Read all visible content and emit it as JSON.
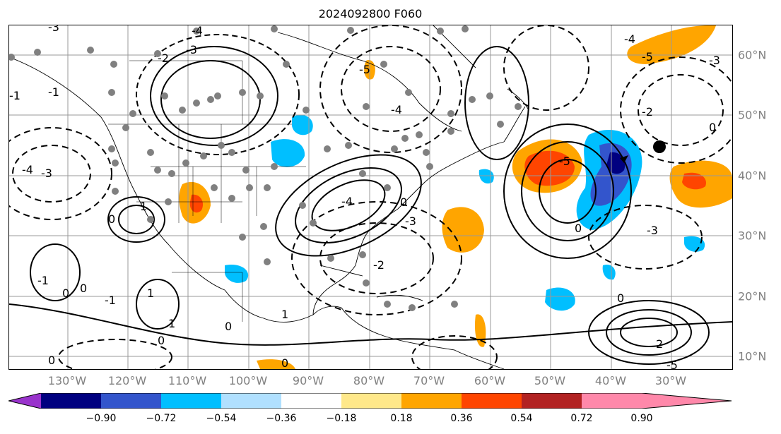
{
  "title": "2024092800 F060",
  "map": {
    "lon_labels": [
      "130°W",
      "120°W",
      "110°W",
      "100°W",
      "90°W",
      "80°W",
      "70°W",
      "60°W",
      "50°W",
      "40°W",
      "30°W"
    ],
    "lat_labels": [
      "60°N",
      "50°N",
      "40°N",
      "30°N",
      "20°N",
      "10°N"
    ],
    "contour_labels": [
      "-3",
      "-4",
      "-2",
      "-1",
      "-5",
      "-3",
      "-4",
      "-2",
      "-5",
      "-3",
      "-4",
      "-1",
      "0",
      "1",
      "2",
      "-2",
      "0",
      "0",
      "-2",
      "-3",
      "-3",
      "-5",
      "-3",
      "-2",
      "1",
      "0",
      "-1",
      "0",
      "-1",
      "-2",
      "-1",
      "-3",
      "-4",
      "0",
      "0"
    ]
  },
  "colorbar": {
    "colors": [
      "#9933cc",
      "#000080",
      "#3355cc",
      "#00bfff",
      "#b0e0ff",
      "#ffffff",
      "#ffe88a",
      "#ffa500",
      "#ff4500",
      "#b22222",
      "#ff88aa"
    ],
    "ticks": [
      "−0.90",
      "−0.72",
      "−0.54",
      "−0.36",
      "−0.18",
      "0.18",
      "0.36",
      "0.54",
      "0.72",
      "0.90"
    ]
  }
}
